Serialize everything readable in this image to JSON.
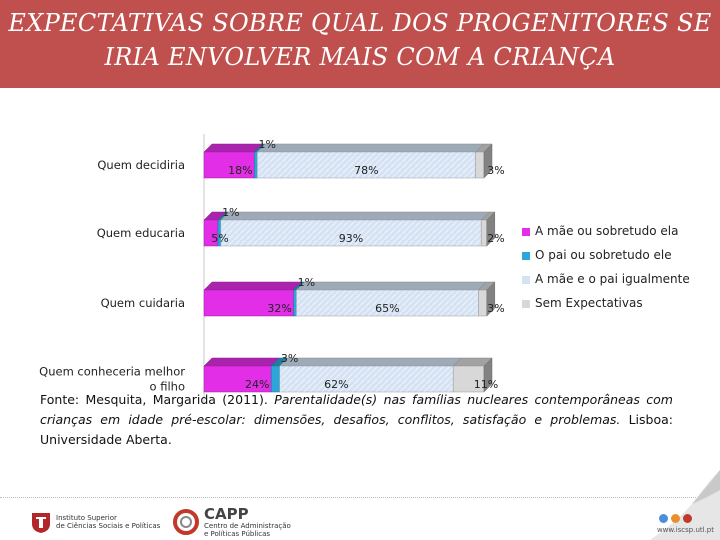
{
  "title": {
    "line1": "EXPECTATIVAS SOBRE QUAL DOS PROGENITORES SE",
    "line2": "IRIA  ENVOLVER MAIS COM A CRIANÇA"
  },
  "colors": {
    "title_bg": "#c0504d",
    "mae": "#e22ee6",
    "pai": "#2aa7d6",
    "ambos": "#d4e2f4",
    "sem": "#d8d8d8"
  },
  "chart_data": {
    "type": "bar",
    "orientation": "horizontal",
    "stacked": "100%",
    "style": "3d",
    "categories": [
      "Quem decidiria",
      "Quem educaria",
      "Quem cuidaria",
      "Quem conheceria melhor o filho"
    ],
    "series": [
      {
        "name": "A mãe ou sobretudo ela",
        "values": [
          18,
          5,
          32,
          24
        ],
        "labels": [
          "18%",
          "5%",
          "32%",
          "24%"
        ]
      },
      {
        "name": "O pai ou sobretudo ele",
        "values": [
          1,
          1,
          1,
          3
        ],
        "labels": [
          "1%",
          "1%",
          "1%",
          "3%"
        ]
      },
      {
        "name": "A mãe e o pai igualmente",
        "values": [
          78,
          93,
          65,
          62
        ],
        "labels": [
          "78%",
          "93%",
          "65%",
          "62%"
        ]
      },
      {
        "name": "Sem Expectativas",
        "values": [
          3,
          2,
          3,
          11
        ],
        "labels": [
          "3%",
          "2%",
          "3%",
          "11%"
        ]
      }
    ],
    "legend_position": "right"
  },
  "source": {
    "prefix": "Fonte: Mesquita, Margarida (2011). ",
    "italic": "Parentalidade(s) nas famílias nucleares contemporâneas com crianças em idade pré-escolar: dimensões, desafios, conflitos, satisfação e problemas.",
    "suffix": " Lisboa: Universidade Aberta."
  },
  "footer": {
    "isc_line1": "Instituto Superior",
    "isc_line2": "de Ciências Sociais e Políticas",
    "capp_name": "CAPP",
    "capp_line1": "Centro de Administração",
    "capp_line2": "e Políticas Públicas",
    "site": "www.iscsp.utl.pt"
  }
}
